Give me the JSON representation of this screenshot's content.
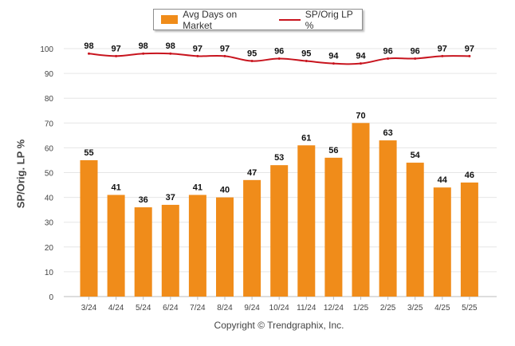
{
  "legend": {
    "bar_label": "Avg Days on Market",
    "line_label": "SP/Orig LP %"
  },
  "axis": {
    "ylabel": "SP/Orig. LP %"
  },
  "footer": {
    "copyright": "Copyright © Trendgraphix, Inc."
  },
  "colors": {
    "bar": "#f08c1a",
    "line": "#c8141e",
    "grid": "#e6e6e6"
  },
  "chart_data": {
    "type": "bar",
    "categories": [
      "3/24",
      "4/24",
      "5/24",
      "6/24",
      "7/24",
      "8/24",
      "9/24",
      "10/24",
      "11/24",
      "12/24",
      "1/25",
      "2/25",
      "3/25",
      "4/25",
      "5/25"
    ],
    "ylim": [
      0,
      100
    ],
    "yticks": [
      0,
      10,
      20,
      30,
      40,
      50,
      60,
      70,
      80,
      90,
      100
    ],
    "grid": true,
    "legend_position": "top-center",
    "ylabel": "SP/Orig. LP %",
    "series": [
      {
        "name": "Avg Days on Market",
        "type": "bar",
        "values": [
          55,
          41,
          36,
          37,
          41,
          40,
          47,
          53,
          61,
          56,
          70,
          63,
          54,
          44,
          46
        ]
      },
      {
        "name": "SP/Orig LP %",
        "type": "line",
        "values": [
          98,
          97,
          98,
          98,
          97,
          97,
          95,
          96,
          95,
          94,
          94,
          96,
          96,
          97,
          97
        ]
      }
    ]
  }
}
